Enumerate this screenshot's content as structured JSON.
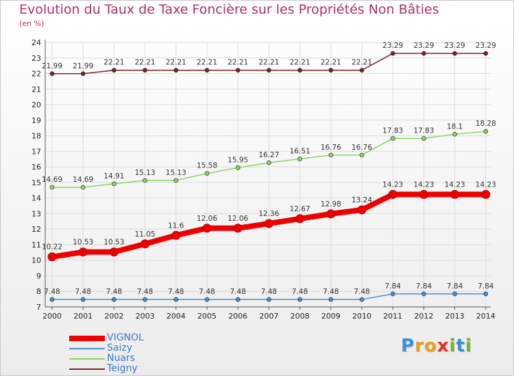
{
  "chart_data": {
    "type": "line",
    "title": "Evolution du Taux de Taxe Foncière sur les Propriétés Non Bâties",
    "ylabel": "(en %)",
    "xlabel": "",
    "ylim": [
      7,
      24
    ],
    "yticks": [
      7,
      8,
      9,
      10,
      11,
      12,
      13,
      14,
      15,
      16,
      17,
      18,
      19,
      20,
      21,
      22,
      23,
      24
    ],
    "categories": [
      "2000",
      "2001",
      "2002",
      "2003",
      "2004",
      "2005",
      "2006",
      "2007",
      "2008",
      "2009",
      "2010",
      "2011",
      "2012",
      "2013",
      "2014"
    ],
    "grid": true,
    "series": [
      {
        "name": "VIGNOL",
        "color": "#ee0000",
        "emphasis": true,
        "values": [
          10.22,
          10.53,
          10.53,
          11.05,
          11.6,
          12.06,
          12.06,
          12.36,
          12.67,
          12.98,
          13.24,
          14.23,
          14.23,
          14.23,
          14.23
        ],
        "labels": [
          "10.22",
          "10.53",
          "10.53",
          "11.05",
          "11.6",
          "12.06",
          "12.06",
          "12.36",
          "12.67",
          "12.98",
          "13.24",
          "14.23",
          "14.23",
          "14.23",
          "14.23"
        ]
      },
      {
        "name": "Saizy",
        "color": "#4a8fcb",
        "emphasis": false,
        "values": [
          7.48,
          7.48,
          7.48,
          7.48,
          7.48,
          7.48,
          7.48,
          7.48,
          7.48,
          7.48,
          7.48,
          7.84,
          7.84,
          7.84,
          7.84
        ],
        "labels": [
          "7.48",
          "7.48",
          "7.48",
          "7.48",
          "7.48",
          "7.48",
          "7.48",
          "7.48",
          "7.48",
          "7.48",
          "7.48",
          "7.84",
          "7.84",
          "7.84",
          "7.84"
        ]
      },
      {
        "name": "Nuars",
        "color": "#88d460",
        "emphasis": false,
        "values": [
          14.69,
          14.69,
          14.91,
          15.13,
          15.13,
          15.58,
          15.95,
          16.27,
          16.51,
          16.76,
          16.76,
          17.83,
          17.83,
          18.1,
          18.28
        ],
        "labels": [
          "14.69",
          "14.69",
          "14.91",
          "15.13",
          "15.13",
          "15.58",
          "15.95",
          "16.27",
          "16.51",
          "16.76",
          "16.76",
          "17.83",
          "17.83",
          "18.1",
          "18.28"
        ]
      },
      {
        "name": "Teigny",
        "color": "#7a2228",
        "emphasis": false,
        "values": [
          21.99,
          21.99,
          22.21,
          22.21,
          22.21,
          22.21,
          22.21,
          22.21,
          22.21,
          22.21,
          22.21,
          23.29,
          23.29,
          23.29,
          23.29
        ],
        "labels": [
          "21.99",
          "21.99",
          "22.21",
          "22.21",
          "22.21",
          "22.21",
          "22.21",
          "22.21",
          "22.21",
          "22.21",
          "22.21",
          "23.29",
          "23.29",
          "23.29",
          "23.29"
        ]
      }
    ]
  },
  "logo": {
    "letters": [
      "P",
      "r",
      "o",
      "x",
      "i",
      "t",
      "i"
    ],
    "colors": [
      "#3a8fd8",
      "#e8a020",
      "#e8a020",
      "#e8302a",
      "#70b830",
      "#3a8fd8",
      "#70b830"
    ]
  }
}
